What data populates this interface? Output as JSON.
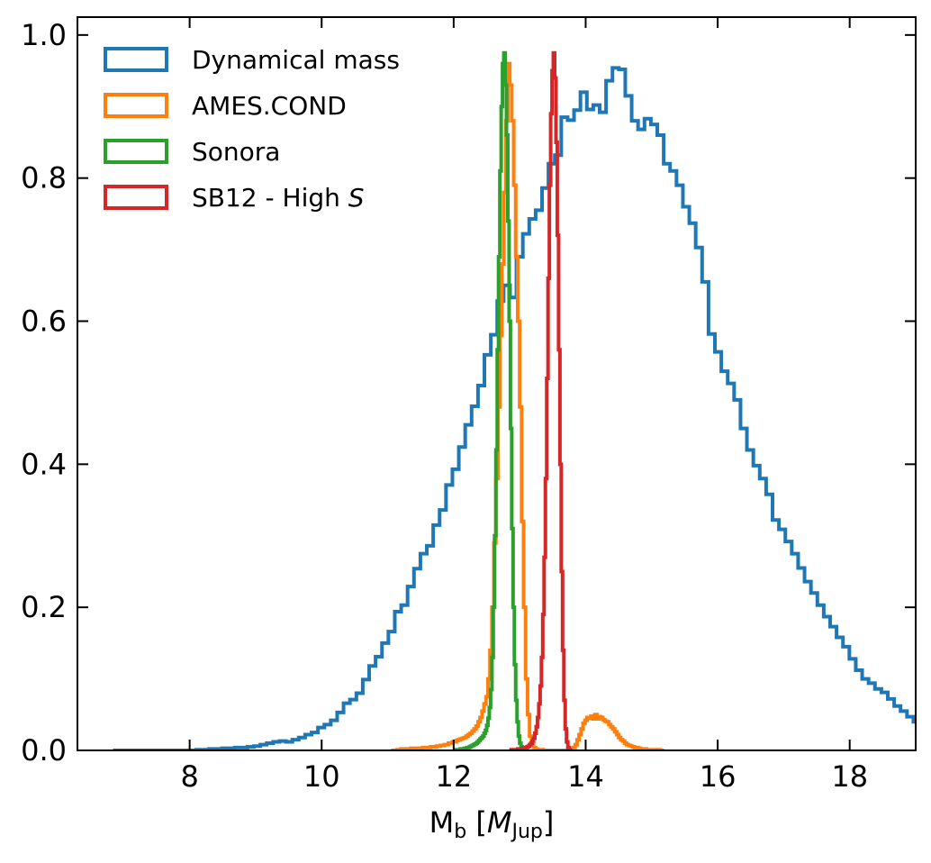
{
  "chart_data": {
    "type": "histogram",
    "xlabel_main": "M",
    "xlabel_sub": "b",
    "xlabel_unit_open": " [",
    "xlabel_unit_main": "M",
    "xlabel_unit_sub": "Jup",
    "xlabel_unit_close": "]",
    "ylabel": "",
    "xlim": [
      6.3,
      19.0
    ],
    "ylim": [
      0.0,
      1.025
    ],
    "xticks": [
      8,
      10,
      12,
      14,
      16,
      18
    ],
    "yticks": [
      0.0,
      0.2,
      0.4,
      0.6,
      0.8,
      1.0
    ],
    "xtick_labels": [
      "8",
      "10",
      "12",
      "14",
      "16",
      "18"
    ],
    "ytick_labels": [
      "0.0",
      "0.2",
      "0.4",
      "0.6",
      "0.8",
      "1.0"
    ],
    "grid": false,
    "legend_position": "top-left",
    "series": [
      {
        "name": "Dynamical mass",
        "color": "#1f77b4",
        "bin_start": 6.84,
        "bin_width": 0.097,
        "values": [
          0.0,
          0.0,
          0.0,
          0.0,
          0.0,
          0.0,
          0.0,
          0.0,
          0.0,
          0.0,
          0.0,
          0.0,
          0.0,
          0.001,
          0.001,
          0.002,
          0.002,
          0.003,
          0.003,
          0.004,
          0.004,
          0.005,
          0.006,
          0.008,
          0.01,
          0.012,
          0.013,
          0.012,
          0.015,
          0.018,
          0.022,
          0.025,
          0.032,
          0.036,
          0.042,
          0.053,
          0.066,
          0.071,
          0.08,
          0.099,
          0.118,
          0.131,
          0.15,
          0.166,
          0.194,
          0.203,
          0.229,
          0.254,
          0.275,
          0.286,
          0.315,
          0.336,
          0.371,
          0.393,
          0.424,
          0.455,
          0.481,
          0.51,
          0.553,
          0.581,
          0.628,
          0.65,
          0.633,
          0.69,
          0.722,
          0.743,
          0.755,
          0.786,
          0.82,
          0.832,
          0.885,
          0.881,
          0.895,
          0.92,
          0.896,
          0.902,
          0.892,
          0.936,
          0.954,
          0.952,
          0.915,
          0.88,
          0.868,
          0.883,
          0.875,
          0.86,
          0.82,
          0.81,
          0.79,
          0.76,
          0.737,
          0.703,
          0.655,
          0.582,
          0.557,
          0.53,
          0.513,
          0.49,
          0.45,
          0.42,
          0.398,
          0.38,
          0.358,
          0.322,
          0.309,
          0.292,
          0.275,
          0.255,
          0.236,
          0.22,
          0.203,
          0.187,
          0.173,
          0.158,
          0.145,
          0.128,
          0.112,
          0.1,
          0.094,
          0.086,
          0.081,
          0.072,
          0.062,
          0.055,
          0.047,
          0.04,
          0.036,
          0.031,
          0.028,
          0.025,
          0.023,
          0.017,
          0.016,
          0.014,
          0.012,
          0.01,
          0.008,
          0.006,
          0.007,
          0.005,
          0.004,
          0.005,
          0.004,
          0.003,
          0.003,
          0.002,
          0.001,
          0.001,
          0.001,
          0.001,
          0.001,
          0.0,
          0.0,
          0.0,
          0.0,
          0.0,
          0.0,
          0.0,
          0.0,
          0.0,
          0.0,
          0.0,
          0.0,
          0.0,
          0.0,
          0.0,
          0.0,
          0.0,
          0.0,
          0.0,
          0.0,
          0.0,
          0.0,
          0.0,
          0.0,
          0.0,
          0.0
        ]
      },
      {
        "name": "AMES.COND",
        "color": "#ff7f0e",
        "bin_start": 11.05,
        "bin_width": 0.03,
        "values": [
          0.0,
          0.0,
          0.0,
          0.001,
          0.001,
          0.002,
          0.002,
          0.002,
          0.002,
          0.002,
          0.003,
          0.003,
          0.003,
          0.003,
          0.003,
          0.003,
          0.004,
          0.004,
          0.004,
          0.004,
          0.005,
          0.005,
          0.005,
          0.006,
          0.006,
          0.007,
          0.007,
          0.008,
          0.008,
          0.01,
          0.01,
          0.012,
          0.012,
          0.014,
          0.015,
          0.016,
          0.017,
          0.018,
          0.02,
          0.022,
          0.024,
          0.027,
          0.03,
          0.034,
          0.04,
          0.046,
          0.055,
          0.065,
          0.075,
          0.1,
          0.14,
          0.2,
          0.29,
          0.38,
          0.48,
          0.58,
          0.68,
          0.78,
          0.88,
          0.96,
          0.93,
          0.88,
          0.79,
          0.69,
          0.6,
          0.48,
          0.32,
          0.2,
          0.1,
          0.05,
          0.02,
          0.008,
          0.004,
          0.002,
          0.001,
          0.001,
          0.001,
          0.0,
          0.0,
          0.0,
          0.0,
          0.0,
          0.0,
          0.0,
          0.0,
          0.0,
          0.0,
          0.0,
          0.0,
          0.0,
          0.001,
          0.002,
          0.004,
          0.008,
          0.015,
          0.022,
          0.03,
          0.038,
          0.042,
          0.046,
          0.045,
          0.048,
          0.044,
          0.05,
          0.044,
          0.047,
          0.046,
          0.043,
          0.041,
          0.04,
          0.036,
          0.033,
          0.03,
          0.026,
          0.022,
          0.018,
          0.015,
          0.013,
          0.01,
          0.008,
          0.007,
          0.006,
          0.005,
          0.004,
          0.004,
          0.003,
          0.002,
          0.002,
          0.002,
          0.001,
          0.001,
          0.001,
          0.001,
          0.001,
          0.001,
          0.001,
          0.0,
          0.0
        ]
      },
      {
        "name": "Sonora",
        "color": "#2ca02c",
        "bin_start": 12.0,
        "bin_width": 0.02,
        "values": [
          0.0,
          0.0,
          0.001,
          0.001,
          0.001,
          0.002,
          0.002,
          0.002,
          0.003,
          0.003,
          0.004,
          0.004,
          0.005,
          0.006,
          0.007,
          0.008,
          0.009,
          0.01,
          0.012,
          0.014,
          0.016,
          0.018,
          0.02,
          0.024,
          0.028,
          0.035,
          0.045,
          0.06,
          0.085,
          0.13,
          0.2,
          0.3,
          0.42,
          0.56,
          0.69,
          0.81,
          0.9,
          0.96,
          0.975,
          0.93,
          0.86,
          0.74,
          0.6,
          0.45,
          0.31,
          0.2,
          0.12,
          0.07,
          0.04,
          0.02,
          0.01,
          0.005,
          0.003,
          0.002,
          0.001,
          0.0,
          0.0
        ]
      },
      {
        "name": "SB12 - High S",
        "name_main": "SB12 - High ",
        "name_italic": "S",
        "color": "#d62728",
        "bin_start": 12.85,
        "bin_width": 0.02,
        "values": [
          0.0,
          0.001,
          0.001,
          0.001,
          0.001,
          0.001,
          0.002,
          0.002,
          0.002,
          0.002,
          0.003,
          0.003,
          0.004,
          0.005,
          0.006,
          0.008,
          0.01,
          0.013,
          0.017,
          0.024,
          0.033,
          0.046,
          0.065,
          0.09,
          0.13,
          0.19,
          0.27,
          0.38,
          0.52,
          0.66,
          0.79,
          0.89,
          0.95,
          0.975,
          0.94,
          0.85,
          0.72,
          0.56,
          0.4,
          0.25,
          0.14,
          0.07,
          0.03,
          0.012,
          0.004,
          0.001,
          0.0
        ]
      }
    ]
  }
}
